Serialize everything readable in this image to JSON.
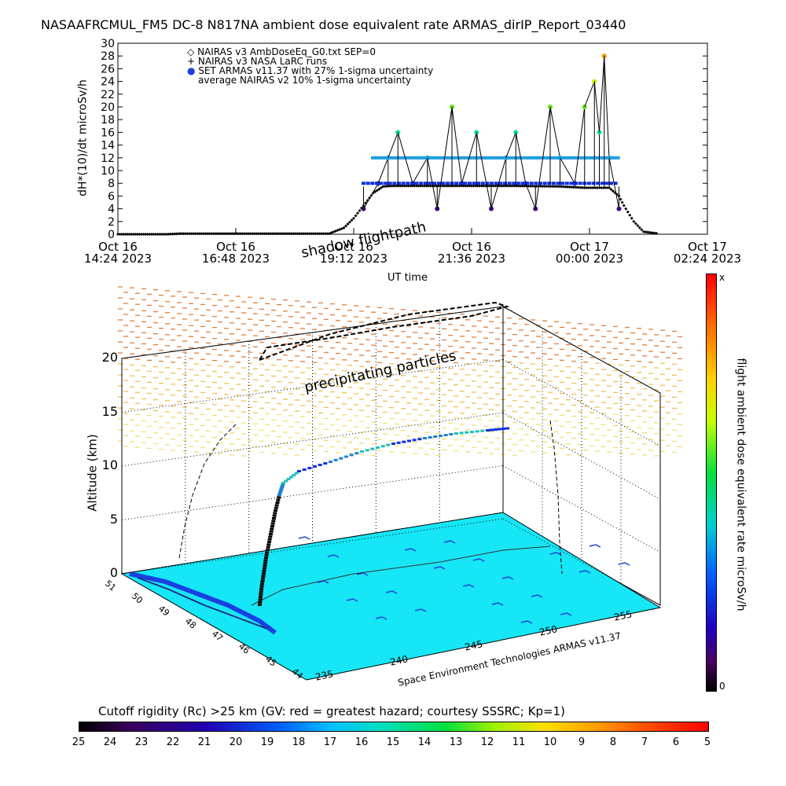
{
  "title": "NASAAFRCMUL_FM5 DC-8   N817NA ambient dose equivalent rate ARMAS_dirIP_Report_03440",
  "colors": {
    "diamond": "#000000",
    "armas_band": "#1f9fe0",
    "nairas_plus": "#000000"
  },
  "top_chart": {
    "ylabel": "dH*(10)/dt microSv/h",
    "xlabel": "UT time",
    "yticks": [
      "0",
      "2",
      "4",
      "6",
      "8",
      "10",
      "12",
      "14",
      "16",
      "18",
      "20",
      "22",
      "24",
      "26",
      "28",
      "30"
    ],
    "xticks": [
      {
        "day": "Oct 16",
        "time": "14:24 2023"
      },
      {
        "day": "Oct 16",
        "time": "16:48 2023"
      },
      {
        "day": "Oct 16",
        "time": "19:12 2023"
      },
      {
        "day": "Oct 16",
        "time": "21:36 2023"
      },
      {
        "day": "Oct 17",
        "time": "00:00 2023"
      },
      {
        "day": "Oct 17",
        "time": "02:24 2023"
      }
    ],
    "legend": [
      {
        "symbol": "◇",
        "text": "NAIRAS v3 AmbDoseEq_G0.txt SEP=0"
      },
      {
        "symbol": "+",
        "text": "NAIRAS v3 NASA LaRC runs"
      },
      {
        "symbol": "●",
        "text": "SET ARMAS v11.37 with 27% 1-sigma uncertainty"
      },
      {
        "symbol": "",
        "text": "average NAIRAS v2 10% 1-sigma uncertainty"
      }
    ]
  },
  "chart_data": {
    "type": "line",
    "x_unit": "hours after Oct 16 14:24 UT",
    "xlim": [
      0,
      12
    ],
    "ylim": [
      0,
      30
    ],
    "series": [
      {
        "name": "NAIRAS v3 AmbDoseEq_G0.txt SEP=0",
        "x": [
          0.0,
          1.0,
          1.3,
          4.3,
          4.6,
          4.8,
          5.0,
          5.2,
          5.4,
          5.6,
          7.0,
          8.0,
          9.0,
          9.5,
          10.0,
          10.2,
          10.3,
          10.5,
          10.7,
          11.0
        ],
        "y": [
          0.0,
          0.0,
          0.1,
          0.1,
          1.0,
          2.5,
          4.5,
          6.5,
          7.5,
          7.6,
          7.6,
          7.6,
          7.5,
          7.3,
          7.3,
          6.0,
          4.5,
          2.0,
          0.4,
          0.1
        ]
      },
      {
        "name": "SET ARMAS v11.37 with 27% 1-sigma uncertainty",
        "x": [
          5.0,
          5.3,
          5.5,
          5.7,
          6.0,
          6.3,
          6.5,
          6.8,
          7.0,
          7.3,
          7.6,
          7.9,
          8.1,
          8.3,
          8.5,
          8.8,
          9.0,
          9.3,
          9.5,
          9.7,
          9.8,
          9.9,
          10.0,
          10.2
        ],
        "y": [
          4.0,
          8.0,
          12.0,
          16.0,
          8.0,
          12.0,
          4.0,
          20.0,
          8.0,
          16.0,
          4.0,
          12.0,
          16.0,
          8.0,
          4.0,
          20.0,
          12.0,
          8.0,
          20.0,
          24.0,
          16.0,
          28.0,
          12.0,
          4.0
        ]
      }
    ],
    "armas_band_levels": [
      4,
      8,
      12,
      16,
      20,
      24,
      28
    ]
  },
  "bottom_chart": {
    "shadow_label": "shadow flightpath",
    "precip_label": "precipitating particles",
    "zlabel": "Altitude (km)",
    "zticks": [
      "0",
      "5",
      "10",
      "15",
      "20"
    ],
    "lat_ticks": [
      "51",
      "50",
      "49",
      "48",
      "47",
      "46",
      "45",
      "44"
    ],
    "lon_ticks": [
      "235",
      "240",
      "245",
      "250",
      "255"
    ],
    "credit": "Space Environment Technologies ARMAS v11.37",
    "colorbar_label": "flight ambient dose equivalent rate microSv/h",
    "colorbar_top": "x",
    "colorbar_bottom": "0"
  },
  "bottom_colorbar": {
    "label": "Cutoff rigidity (Rc) >25 km (GV: red = greatest hazard; courtesy SSSRC; Kp=1)",
    "ticks": [
      "25",
      "24",
      "23",
      "22",
      "21",
      "20",
      "19",
      "18",
      "17",
      "16",
      "15",
      "14",
      "13",
      "12",
      "11",
      "10",
      "9",
      "8",
      "7",
      "6",
      "5"
    ]
  }
}
